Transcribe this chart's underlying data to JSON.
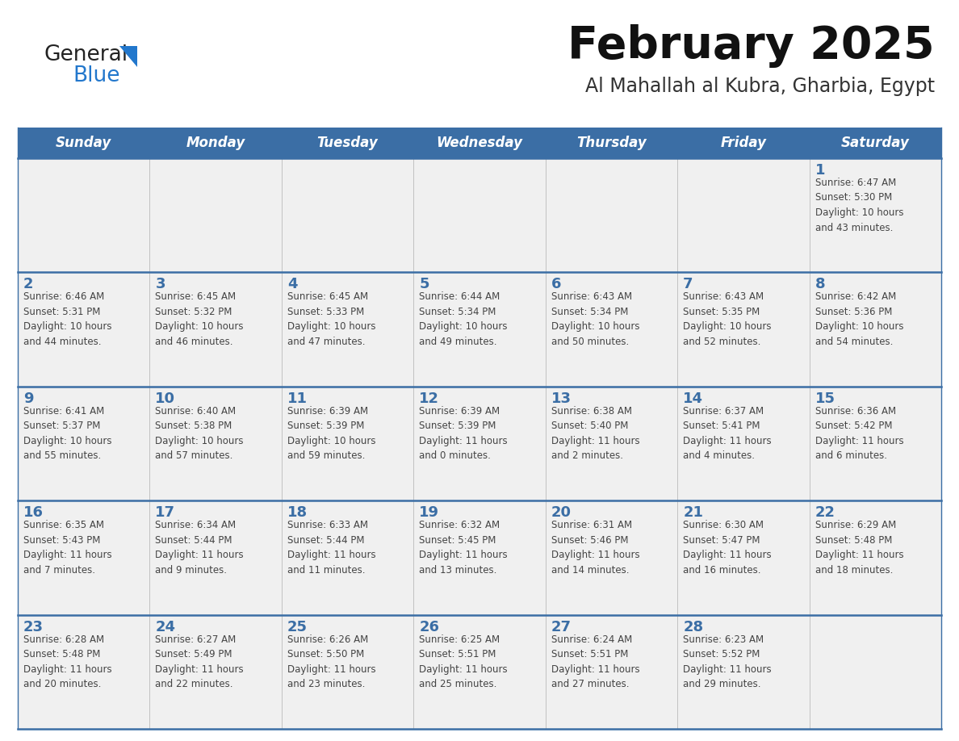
{
  "title": "February 2025",
  "subtitle": "Al Mahallah al Kubra, Gharbia, Egypt",
  "days_of_week": [
    "Sunday",
    "Monday",
    "Tuesday",
    "Wednesday",
    "Thursday",
    "Friday",
    "Saturday"
  ],
  "header_bg": "#3B6EA5",
  "header_text": "#FFFFFF",
  "cell_bg_light": "#F0F0F0",
  "day_number_color": "#3B6EA5",
  "text_color": "#444444",
  "line_color": "#3B6EA5",
  "calendar_data": [
    [
      {
        "day": null,
        "info": null
      },
      {
        "day": null,
        "info": null
      },
      {
        "day": null,
        "info": null
      },
      {
        "day": null,
        "info": null
      },
      {
        "day": null,
        "info": null
      },
      {
        "day": null,
        "info": null
      },
      {
        "day": 1,
        "info": "Sunrise: 6:47 AM\nSunset: 5:30 PM\nDaylight: 10 hours\nand 43 minutes."
      }
    ],
    [
      {
        "day": 2,
        "info": "Sunrise: 6:46 AM\nSunset: 5:31 PM\nDaylight: 10 hours\nand 44 minutes."
      },
      {
        "day": 3,
        "info": "Sunrise: 6:45 AM\nSunset: 5:32 PM\nDaylight: 10 hours\nand 46 minutes."
      },
      {
        "day": 4,
        "info": "Sunrise: 6:45 AM\nSunset: 5:33 PM\nDaylight: 10 hours\nand 47 minutes."
      },
      {
        "day": 5,
        "info": "Sunrise: 6:44 AM\nSunset: 5:34 PM\nDaylight: 10 hours\nand 49 minutes."
      },
      {
        "day": 6,
        "info": "Sunrise: 6:43 AM\nSunset: 5:34 PM\nDaylight: 10 hours\nand 50 minutes."
      },
      {
        "day": 7,
        "info": "Sunrise: 6:43 AM\nSunset: 5:35 PM\nDaylight: 10 hours\nand 52 minutes."
      },
      {
        "day": 8,
        "info": "Sunrise: 6:42 AM\nSunset: 5:36 PM\nDaylight: 10 hours\nand 54 minutes."
      }
    ],
    [
      {
        "day": 9,
        "info": "Sunrise: 6:41 AM\nSunset: 5:37 PM\nDaylight: 10 hours\nand 55 minutes."
      },
      {
        "day": 10,
        "info": "Sunrise: 6:40 AM\nSunset: 5:38 PM\nDaylight: 10 hours\nand 57 minutes."
      },
      {
        "day": 11,
        "info": "Sunrise: 6:39 AM\nSunset: 5:39 PM\nDaylight: 10 hours\nand 59 minutes."
      },
      {
        "day": 12,
        "info": "Sunrise: 6:39 AM\nSunset: 5:39 PM\nDaylight: 11 hours\nand 0 minutes."
      },
      {
        "day": 13,
        "info": "Sunrise: 6:38 AM\nSunset: 5:40 PM\nDaylight: 11 hours\nand 2 minutes."
      },
      {
        "day": 14,
        "info": "Sunrise: 6:37 AM\nSunset: 5:41 PM\nDaylight: 11 hours\nand 4 minutes."
      },
      {
        "day": 15,
        "info": "Sunrise: 6:36 AM\nSunset: 5:42 PM\nDaylight: 11 hours\nand 6 minutes."
      }
    ],
    [
      {
        "day": 16,
        "info": "Sunrise: 6:35 AM\nSunset: 5:43 PM\nDaylight: 11 hours\nand 7 minutes."
      },
      {
        "day": 17,
        "info": "Sunrise: 6:34 AM\nSunset: 5:44 PM\nDaylight: 11 hours\nand 9 minutes."
      },
      {
        "day": 18,
        "info": "Sunrise: 6:33 AM\nSunset: 5:44 PM\nDaylight: 11 hours\nand 11 minutes."
      },
      {
        "day": 19,
        "info": "Sunrise: 6:32 AM\nSunset: 5:45 PM\nDaylight: 11 hours\nand 13 minutes."
      },
      {
        "day": 20,
        "info": "Sunrise: 6:31 AM\nSunset: 5:46 PM\nDaylight: 11 hours\nand 14 minutes."
      },
      {
        "day": 21,
        "info": "Sunrise: 6:30 AM\nSunset: 5:47 PM\nDaylight: 11 hours\nand 16 minutes."
      },
      {
        "day": 22,
        "info": "Sunrise: 6:29 AM\nSunset: 5:48 PM\nDaylight: 11 hours\nand 18 minutes."
      }
    ],
    [
      {
        "day": 23,
        "info": "Sunrise: 6:28 AM\nSunset: 5:48 PM\nDaylight: 11 hours\nand 20 minutes."
      },
      {
        "day": 24,
        "info": "Sunrise: 6:27 AM\nSunset: 5:49 PM\nDaylight: 11 hours\nand 22 minutes."
      },
      {
        "day": 25,
        "info": "Sunrise: 6:26 AM\nSunset: 5:50 PM\nDaylight: 11 hours\nand 23 minutes."
      },
      {
        "day": 26,
        "info": "Sunrise: 6:25 AM\nSunset: 5:51 PM\nDaylight: 11 hours\nand 25 minutes."
      },
      {
        "day": 27,
        "info": "Sunrise: 6:24 AM\nSunset: 5:51 PM\nDaylight: 11 hours\nand 27 minutes."
      },
      {
        "day": 28,
        "info": "Sunrise: 6:23 AM\nSunset: 5:52 PM\nDaylight: 11 hours\nand 29 minutes."
      },
      {
        "day": null,
        "info": null
      }
    ]
  ]
}
